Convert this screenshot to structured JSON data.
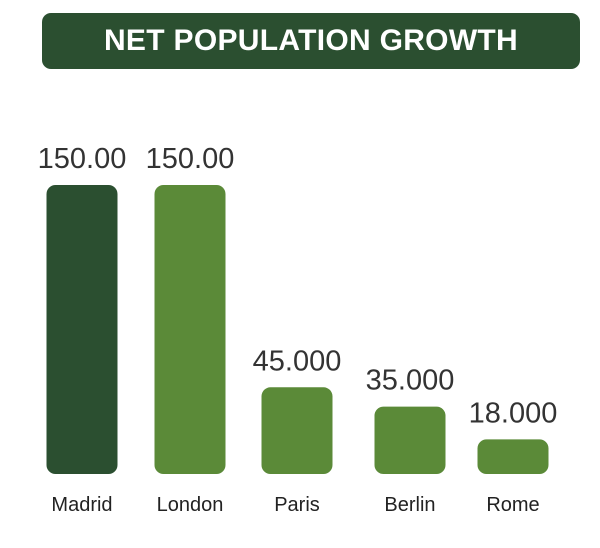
{
  "colors": {
    "dark_green": "#2b4f30",
    "medium_green": "#5b8a38",
    "label_text": "#333333",
    "banner_text": "#ffffff"
  },
  "chart_data": {
    "type": "bar",
    "title": "NET POPULATION GROWTH",
    "categories": [
      "Madrid",
      "London",
      "Paris",
      "Berlin",
      "Rome"
    ],
    "values": [
      150.0,
      150.0,
      45.0,
      35.0,
      18.0
    ],
    "value_labels": [
      "150.00",
      "150.00",
      "45.000",
      "35.000",
      "18.000"
    ],
    "bar_colors": [
      "#2b4f30",
      "#5b8a38",
      "#5b8a38",
      "#5b8a38",
      "#5b8a38"
    ],
    "highlighted_category": "Madrid",
    "xlabel": "",
    "ylabel": "",
    "grid": false,
    "legend": "none"
  }
}
